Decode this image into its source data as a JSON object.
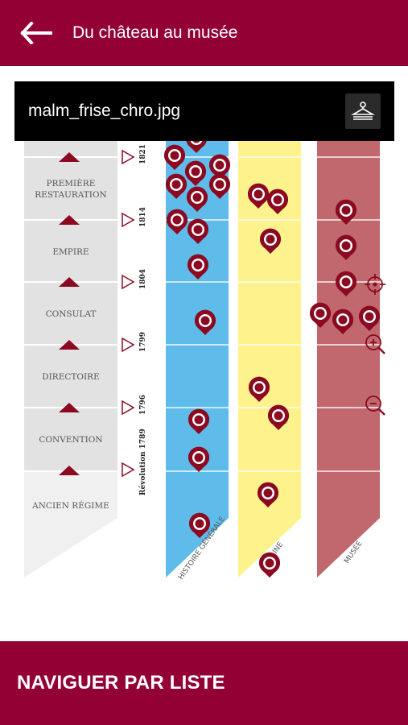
{
  "header": {
    "back_icon": "arrow-left-icon",
    "title": "Du château au musée"
  },
  "image_bar": {
    "filename": "malm_frise_chro.jpg",
    "action_icon": "hanger-icon"
  },
  "timeline": {
    "periods": [
      "PREMIÈRE RESTAURATION",
      "EMPIRE",
      "CONSULAT",
      "DIRECTOIRE",
      "CONVENTION",
      "ANCIEN RÉGIME"
    ],
    "years": [
      "1821",
      "1814",
      "1804",
      "1799",
      "1796",
      "Révolution 1789"
    ],
    "bands": [
      "HISTOIRE GÉNÉRALE",
      "…INE",
      "MUSÉE"
    ],
    "colors": {
      "histoire": "#5fbcea",
      "domaine": "#fdf28c",
      "musee": "#c0686d",
      "marker": "#8b0a21"
    }
  },
  "zoom_controls": {
    "recenter_icon": "crosshair-icon",
    "zoom_in_icon": "zoom-in-icon",
    "zoom_out_icon": "zoom-out-icon"
  },
  "bottom": {
    "list_button": "NAVIGUER PAR LISTE"
  }
}
